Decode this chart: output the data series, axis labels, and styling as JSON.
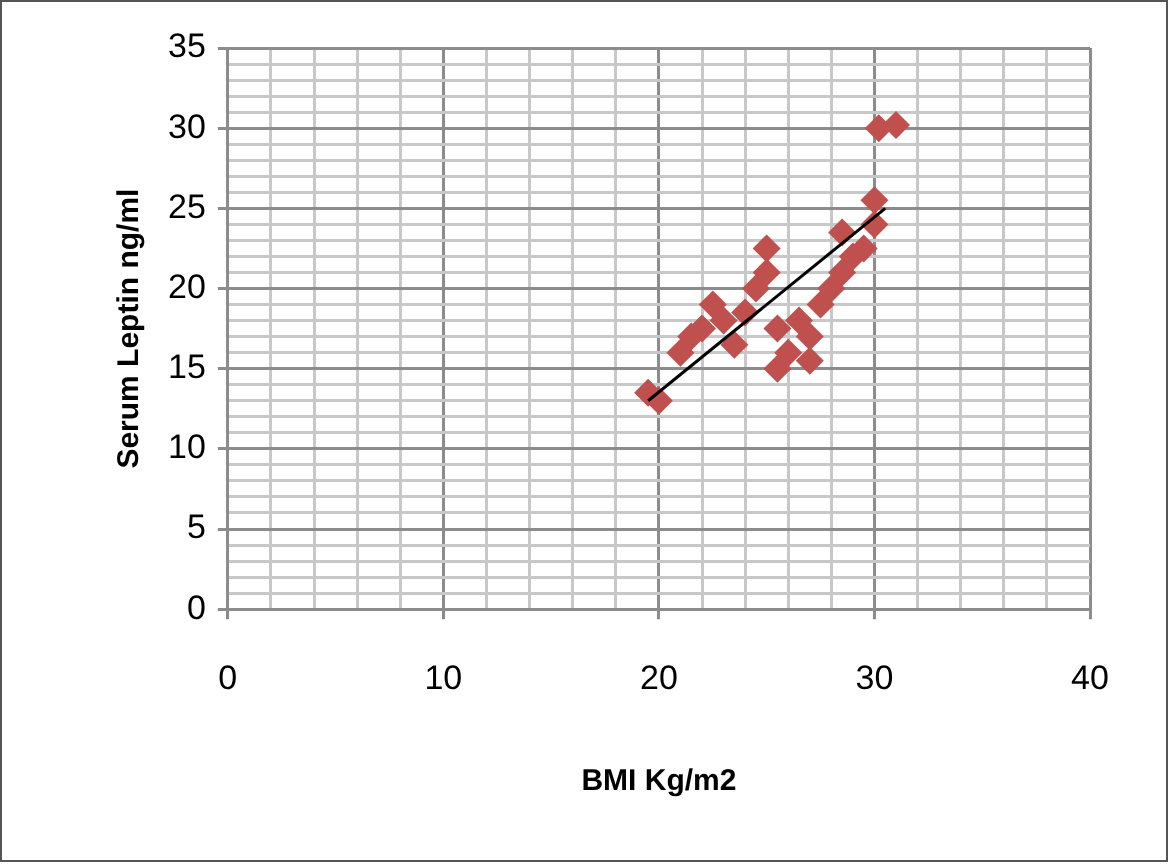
{
  "chart_data": {
    "type": "scatter",
    "xlabel": "BMI Kg/m2",
    "ylabel": "Serum Leptin ng/ml",
    "marker": "diamond",
    "grid": true,
    "xlim": [
      0,
      40
    ],
    "ylim": [
      0,
      35
    ],
    "xticks": [
      0,
      {
        "value": 2,
        "label": null
      },
      {
        "value": 4,
        "label": null
      },
      {
        "value": 6,
        "label": null
      },
      {
        "value": 8,
        "label": null
      },
      10,
      {
        "value": 12,
        "label": null
      },
      {
        "value": 14,
        "label": null
      },
      {
        "value": 16,
        "label": null
      },
      {
        "value": 18,
        "label": null
      },
      20,
      {
        "value": 22,
        "label": null
      },
      {
        "value": 24,
        "label": null
      },
      {
        "value": 26,
        "label": null
      },
      {
        "value": 28,
        "label": null
      },
      30,
      {
        "value": 32,
        "label": null
      },
      {
        "value": 34,
        "label": null
      },
      {
        "value": 36,
        "label": null
      },
      {
        "value": 38,
        "label": null
      },
      40
    ],
    "yticks": [
      0,
      {
        "value": 1,
        "label": null
      },
      {
        "value": 2,
        "label": null
      },
      {
        "value": 3,
        "label": null
      },
      {
        "value": 4,
        "label": null
      },
      5,
      {
        "value": 6,
        "label": null
      },
      {
        "value": 7,
        "label": null
      },
      {
        "value": 8,
        "label": null
      },
      {
        "value": 9,
        "label": null
      },
      10,
      {
        "value": 11,
        "label": null
      },
      {
        "value": 12,
        "label": null
      },
      {
        "value": 13,
        "label": null
      },
      {
        "value": 14,
        "label": null
      },
      15,
      {
        "value": 16,
        "label": null
      },
      {
        "value": 17,
        "label": null
      },
      {
        "value": 18,
        "label": null
      },
      {
        "value": 19,
        "label": null
      },
      20,
      {
        "value": 21,
        "label": null
      },
      {
        "value": 22,
        "label": null
      },
      {
        "value": 23,
        "label": null
      },
      {
        "value": 24,
        "label": null
      },
      25,
      {
        "value": 26,
        "label": null
      },
      {
        "value": 27,
        "label": null
      },
      {
        "value": 28,
        "label": null
      },
      {
        "value": 29,
        "label": null
      },
      30,
      {
        "value": 31,
        "label": null
      },
      {
        "value": 32,
        "label": null
      },
      {
        "value": 33,
        "label": null
      },
      {
        "value": 34,
        "label": null
      },
      35
    ],
    "series": [
      {
        "color": "#c0504d",
        "x": [
          19.5,
          20,
          21,
          21.5,
          22,
          22.5,
          23,
          23.5,
          24,
          24.5,
          25,
          25,
          25.5,
          25.5,
          26,
          26.5,
          27,
          27,
          27.5,
          28,
          28.5,
          28.5,
          29,
          29.5,
          30,
          30,
          30.2,
          31
        ],
        "values": [
          13.5,
          13,
          16,
          17,
          17.5,
          19,
          18,
          16.5,
          18.5,
          20,
          22.5,
          21,
          17.5,
          15,
          16,
          18,
          15.5,
          17,
          19,
          20,
          21,
          23.5,
          22,
          22.5,
          25.5,
          24,
          30,
          30.2
        ]
      },
      {
        "type": "line",
        "marker": "none",
        "color": "#000000",
        "x": [
          19.5,
          30.5
        ],
        "values": [
          13,
          25
        ]
      }
    ]
  }
}
